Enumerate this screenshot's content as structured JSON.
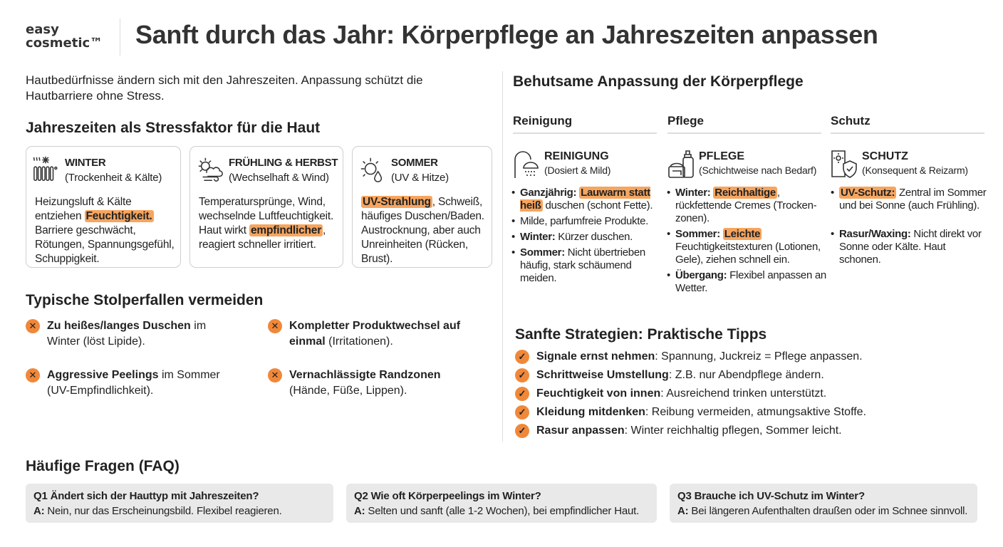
{
  "brand": {
    "logo_line1": "easy",
    "logo_line2": "cosmetic™"
  },
  "title": "Sanft durch das Jahr: Körperpflege an Jahreszeiten anpassen",
  "intro": "Hautbedürfnisse ändern sich mit den Jahreszeiten. Anpassung schützt die Hautbarriere ohne Stress.",
  "seasons": {
    "heading": "Jahreszeiten als Stressfaktor für die Haut",
    "cards": [
      {
        "icon": "radiator-snowflake-icon",
        "title": "WINTER",
        "subtitle": "(Trockenheit & Kälte)",
        "body": [
          {
            "t": "Heizungsluft & Kälte entziehen "
          },
          {
            "h": "Feuchtigkeit."
          },
          {
            "t": " Barriere geschwächt, Rötungen, Spannungsgefühl, Schuppigkeit."
          }
        ]
      },
      {
        "icon": "sun-cloud-wind-icon",
        "title": "FRÜHLING & HERBST",
        "subtitle": "(Wechselhaft & Wind)",
        "body": [
          {
            "t": "Temperatursprünge, Wind, wechselnde Luftfeuchtigkeit. Haut wirkt "
          },
          {
            "h": "empfindlicher"
          },
          {
            "t": ", reagiert schneller irritiert."
          }
        ]
      },
      {
        "icon": "sun-drop-icon",
        "title": "SOMMER",
        "subtitle": "(UV & Hitze)",
        "body": [
          {
            "h": "UV-Strahlung"
          },
          {
            "t": ", Schweiß, häufiges Duschen/Baden. Austrocknung, aber auch Unreinheiten (Rücken, Brust)."
          }
        ]
      }
    ]
  },
  "pitfalls": {
    "heading": "Typische Stolperfallen vermeiden",
    "items": [
      [
        {
          "b": "Zu heißes/langes Duschen"
        },
        {
          "t": " im Winter (löst Lipide)."
        }
      ],
      [
        {
          "b": "Kompletter Produktwechsel auf einmal"
        },
        {
          "t": " (Irritationen)."
        }
      ],
      [
        {
          "b": "Aggressive Peelings"
        },
        {
          "t": " im Sommer (UV-Empfindlichkeit)."
        }
      ],
      [
        {
          "b": "Vernachlässigte Randzonen"
        },
        {
          "t": " (Hände, Füße, Lippen)."
        }
      ]
    ]
  },
  "care": {
    "heading": "Behutsame Anpassung der Körperpflege",
    "columns": [
      {
        "header": "Reinigung",
        "icon": "shower-icon",
        "title": "REINIGUNG",
        "subtitle": "(Dosiert & Mild)",
        "bullets": [
          [
            {
              "b": "Ganzjährig: "
            },
            {
              "h": "Lauwarm statt heiß"
            },
            {
              "t": " duschen (schont Fette)."
            }
          ],
          [
            {
              "t": "Milde, parfumfreie Produkte."
            }
          ],
          [
            {
              "b": "Winter:"
            },
            {
              "t": " Kürzer duschen."
            }
          ],
          [
            {
              "b": "Sommer:"
            },
            {
              "t": " Nicht übertrieben häufig, stark schäumend meiden."
            }
          ]
        ]
      },
      {
        "header": "Pflege",
        "icon": "cream-bottle-icon",
        "title": "PFLEGE",
        "subtitle": "(Schichtweise nach Bedarf)",
        "bullets": [
          [
            {
              "b": "Winter: "
            },
            {
              "h": "Reichhaltige"
            },
            {
              "t": ", rückfettende Cremes (Trocken-zonen)."
            }
          ],
          [
            {
              "b": "Sommer: "
            },
            {
              "h": "Leichte"
            },
            {
              "t": " Feuchtigkeitstexturen (Lotionen, Gele), ziehen schnell ein."
            }
          ],
          [
            {
              "b": "Übergang:"
            },
            {
              "t": " Flexibel anpassen an Wetter."
            }
          ]
        ]
      },
      {
        "header": "Schutz",
        "icon": "sunscreen-shield-icon",
        "title": "SCHUTZ",
        "subtitle": "(Konsequent & Reizarm)",
        "bullets": [
          [
            {
              "h": "UV-Schutz:"
            },
            {
              "t": " Zentral im Sommer und bei Sonne (auch Frühling)."
            }
          ],
          [
            {
              "b": "Rasur/Waxing:"
            },
            {
              "t": " Nicht direkt vor Sonne oder Kälte. Haut schonen."
            }
          ]
        ]
      }
    ]
  },
  "tips": {
    "heading": "Sanfte Strategien: Praktische Tipps",
    "items": [
      [
        {
          "b": "Signale ernst nehmen"
        },
        {
          "t": ": Spannung, Juckreiz = Pflege anpassen."
        }
      ],
      [
        {
          "b": "Schrittweise Umstellung"
        },
        {
          "t": ": Z.B. nur Abendpflege ändern."
        }
      ],
      [
        {
          "b": "Feuchtigkeit von innen"
        },
        {
          "t": ": Ausreichend trinken unterstützt."
        }
      ],
      [
        {
          "b": "Kleidung mitdenken"
        },
        {
          "t": ": Reibung vermeiden, atmungsaktive Stoffe."
        }
      ],
      [
        {
          "b": "Rasur anpassen"
        },
        {
          "t": ": Winter reichhaltig pflegen, Sommer leicht."
        }
      ]
    ]
  },
  "faq": {
    "heading": "Häufige Fragen (FAQ)",
    "items": [
      {
        "q": "Q1 Ändert sich der Hauttyp mit Jahreszeiten?",
        "a_label": "A:",
        "a": " Nein, nur das Erscheinungsbild. Flexibel reagieren."
      },
      {
        "q": "Q2 Wie oft Körperpeelings im Winter?",
        "a_label": "A:",
        "a": " Selten und sanft (alle 1-2 Wochen), bei empfindlicher Haut."
      },
      {
        "q": "Q3 Brauche ich UV-Schutz im Winter?",
        "a_label": "A:",
        "a": " Bei längeren Aufenthalten draußen oder im Schnee sinnvoll."
      }
    ]
  },
  "colors": {
    "accent": "#f0883a",
    "highlight": "#f6a55f",
    "text": "#222222"
  }
}
